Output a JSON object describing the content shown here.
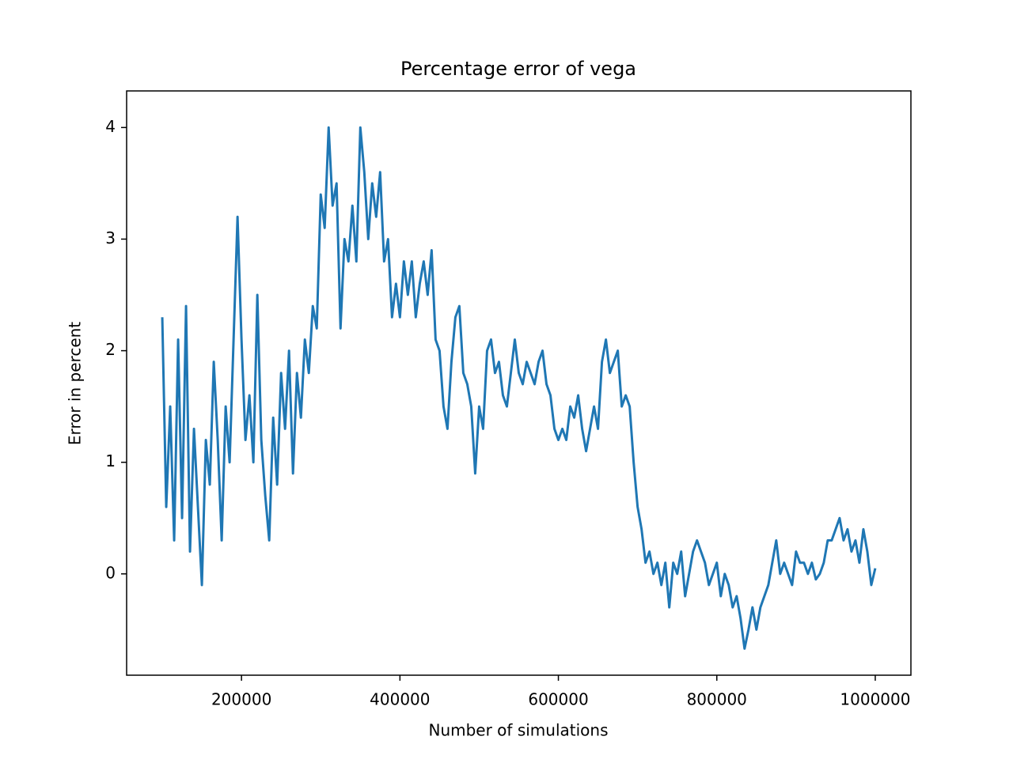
{
  "chart_data": {
    "type": "line",
    "title": "Percentage error of vega",
    "xlabel": "Number of simulations",
    "ylabel": "Error in percent",
    "x": [
      100000,
      105000,
      110000,
      115000,
      120000,
      125000,
      130000,
      135000,
      140000,
      145000,
      150000,
      155000,
      160000,
      165000,
      170000,
      175000,
      180000,
      185000,
      190000,
      195000,
      200000,
      205000,
      210000,
      215000,
      220000,
      225000,
      230000,
      235000,
      240000,
      245000,
      250000,
      255000,
      260000,
      265000,
      270000,
      275000,
      280000,
      285000,
      290000,
      295000,
      300000,
      305000,
      310000,
      315000,
      320000,
      325000,
      330000,
      335000,
      340000,
      345000,
      350000,
      355000,
      360000,
      365000,
      370000,
      375000,
      380000,
      385000,
      390000,
      395000,
      400000,
      405000,
      410000,
      415000,
      420000,
      425000,
      430000,
      435000,
      440000,
      445000,
      450000,
      455000,
      460000,
      465000,
      470000,
      475000,
      480000,
      485000,
      490000,
      495000,
      500000,
      505000,
      510000,
      515000,
      520000,
      525000,
      530000,
      535000,
      540000,
      545000,
      550000,
      555000,
      560000,
      565000,
      570000,
      575000,
      580000,
      585000,
      590000,
      595000,
      600000,
      605000,
      610000,
      615000,
      620000,
      625000,
      630000,
      635000,
      640000,
      645000,
      650000,
      655000,
      660000,
      665000,
      670000,
      675000,
      680000,
      685000,
      690000,
      695000,
      700000,
      705000,
      710000,
      715000,
      720000,
      725000,
      730000,
      735000,
      740000,
      745000,
      750000,
      755000,
      760000,
      765000,
      770000,
      775000,
      780000,
      785000,
      790000,
      795000,
      800000,
      805000,
      810000,
      815000,
      820000,
      825000,
      830000,
      835000,
      840000,
      845000,
      850000,
      855000,
      860000,
      865000,
      870000,
      875000,
      880000,
      885000,
      890000,
      895000,
      900000,
      905000,
      910000,
      915000,
      920000,
      925000,
      930000,
      935000,
      940000,
      945000,
      950000,
      955000,
      960000,
      965000,
      970000,
      975000,
      980000,
      985000,
      990000,
      995000,
      1000000
    ],
    "series": [
      {
        "name": "Error",
        "color": "#1f77b4",
        "values": [
          2.3,
          0.6,
          1.5,
          0.3,
          2.1,
          0.5,
          2.4,
          0.2,
          1.3,
          0.6,
          -0.1,
          1.2,
          0.8,
          1.9,
          1.2,
          0.3,
          1.5,
          1.0,
          2.1,
          3.2,
          2.1,
          1.2,
          1.6,
          1.0,
          2.5,
          1.2,
          0.7,
          0.3,
          1.4,
          0.8,
          1.8,
          1.3,
          2.0,
          0.9,
          1.8,
          1.4,
          2.1,
          1.8,
          2.4,
          2.2,
          3.4,
          3.1,
          4.0,
          3.3,
          3.5,
          2.2,
          3.0,
          2.8,
          3.3,
          2.8,
          4.0,
          3.6,
          3.0,
          3.5,
          3.2,
          3.6,
          2.8,
          3.0,
          2.3,
          2.6,
          2.3,
          2.8,
          2.5,
          2.8,
          2.3,
          2.6,
          2.8,
          2.5,
          2.9,
          2.1,
          2.0,
          1.5,
          1.3,
          1.9,
          2.3,
          2.4,
          1.8,
          1.7,
          1.5,
          0.9,
          1.5,
          1.3,
          2.0,
          2.1,
          1.8,
          1.9,
          1.6,
          1.5,
          1.8,
          2.1,
          1.8,
          1.7,
          1.9,
          1.8,
          1.7,
          1.9,
          2.0,
          1.7,
          1.6,
          1.3,
          1.2,
          1.3,
          1.2,
          1.5,
          1.4,
          1.6,
          1.3,
          1.1,
          1.3,
          1.5,
          1.3,
          1.9,
          2.1,
          1.8,
          1.9,
          2.0,
          1.5,
          1.6,
          1.5,
          1.0,
          0.6,
          0.4,
          0.1,
          0.2,
          0.0,
          0.1,
          -0.1,
          0.1,
          -0.3,
          0.1,
          0.0,
          0.2,
          -0.2,
          0.0,
          0.2,
          0.3,
          0.2,
          0.1,
          -0.1,
          0.0,
          0.1,
          -0.2,
          0.0,
          -0.1,
          -0.3,
          -0.2,
          -0.4,
          -0.67,
          -0.5,
          -0.3,
          -0.5,
          -0.3,
          -0.2,
          -0.1,
          0.1,
          0.3,
          0.0,
          0.1,
          0.0,
          -0.1,
          0.2,
          0.1,
          0.1,
          0.0,
          0.1,
          -0.05,
          0.0,
          0.1,
          0.3,
          0.3,
          0.4,
          0.5,
          0.3,
          0.4,
          0.2,
          0.3,
          0.1,
          0.4,
          0.2,
          -0.1,
          0.05
        ]
      }
    ],
    "xlim": [
      55000,
      1045000
    ],
    "xticks": [
      200000,
      400000,
      600000,
      800000,
      1000000
    ],
    "ylim": [
      -0.908,
      4.328
    ],
    "yticks": [
      0,
      1,
      2,
      3,
      4
    ],
    "grid": false
  }
}
